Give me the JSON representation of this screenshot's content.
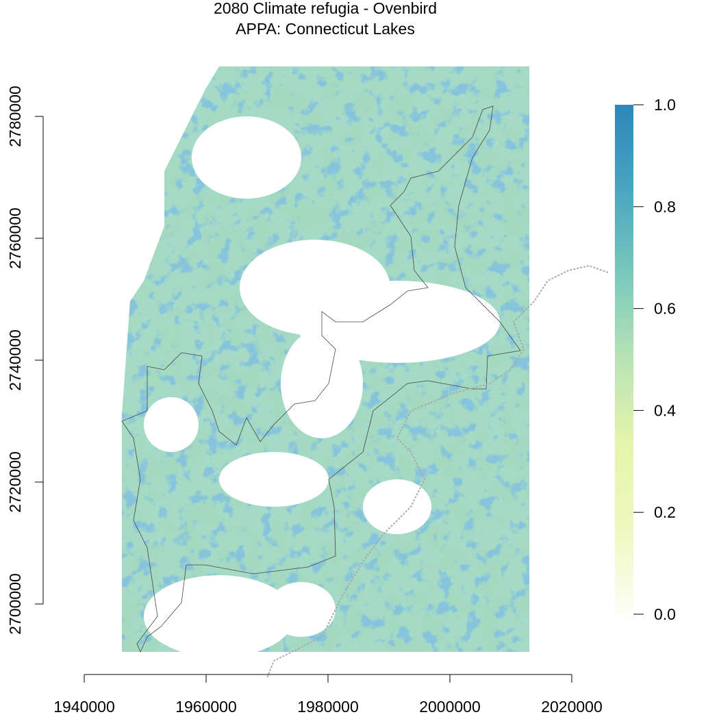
{
  "chart_data": {
    "type": "raster",
    "title": "2080 Climate refugia - Ovenbird",
    "subtitle": "APPA: Connecticut Lakes",
    "xlim": [
      1940000,
      2020000
    ],
    "xticks": [
      1940000,
      1960000,
      1980000,
      2000000,
      2020000
    ],
    "ylim": [
      2700000,
      2780000
    ],
    "yticks": [
      2700000,
      2720000,
      2740000,
      2760000,
      2780000
    ],
    "zlim": [
      0,
      1
    ],
    "zticks": [
      {
        "value": 0,
        "label": "0.0"
      },
      0.2,
      0.4,
      0.6,
      0.8,
      {
        "value": 1,
        "label": "1.0"
      }
    ],
    "colors": [
      "#fdfdf6",
      "#eef8bf",
      "#e6f4ab",
      "#b9e3b5",
      "#79c9bc",
      "#4aa5c0",
      "#2f86bb"
    ]
  }
}
